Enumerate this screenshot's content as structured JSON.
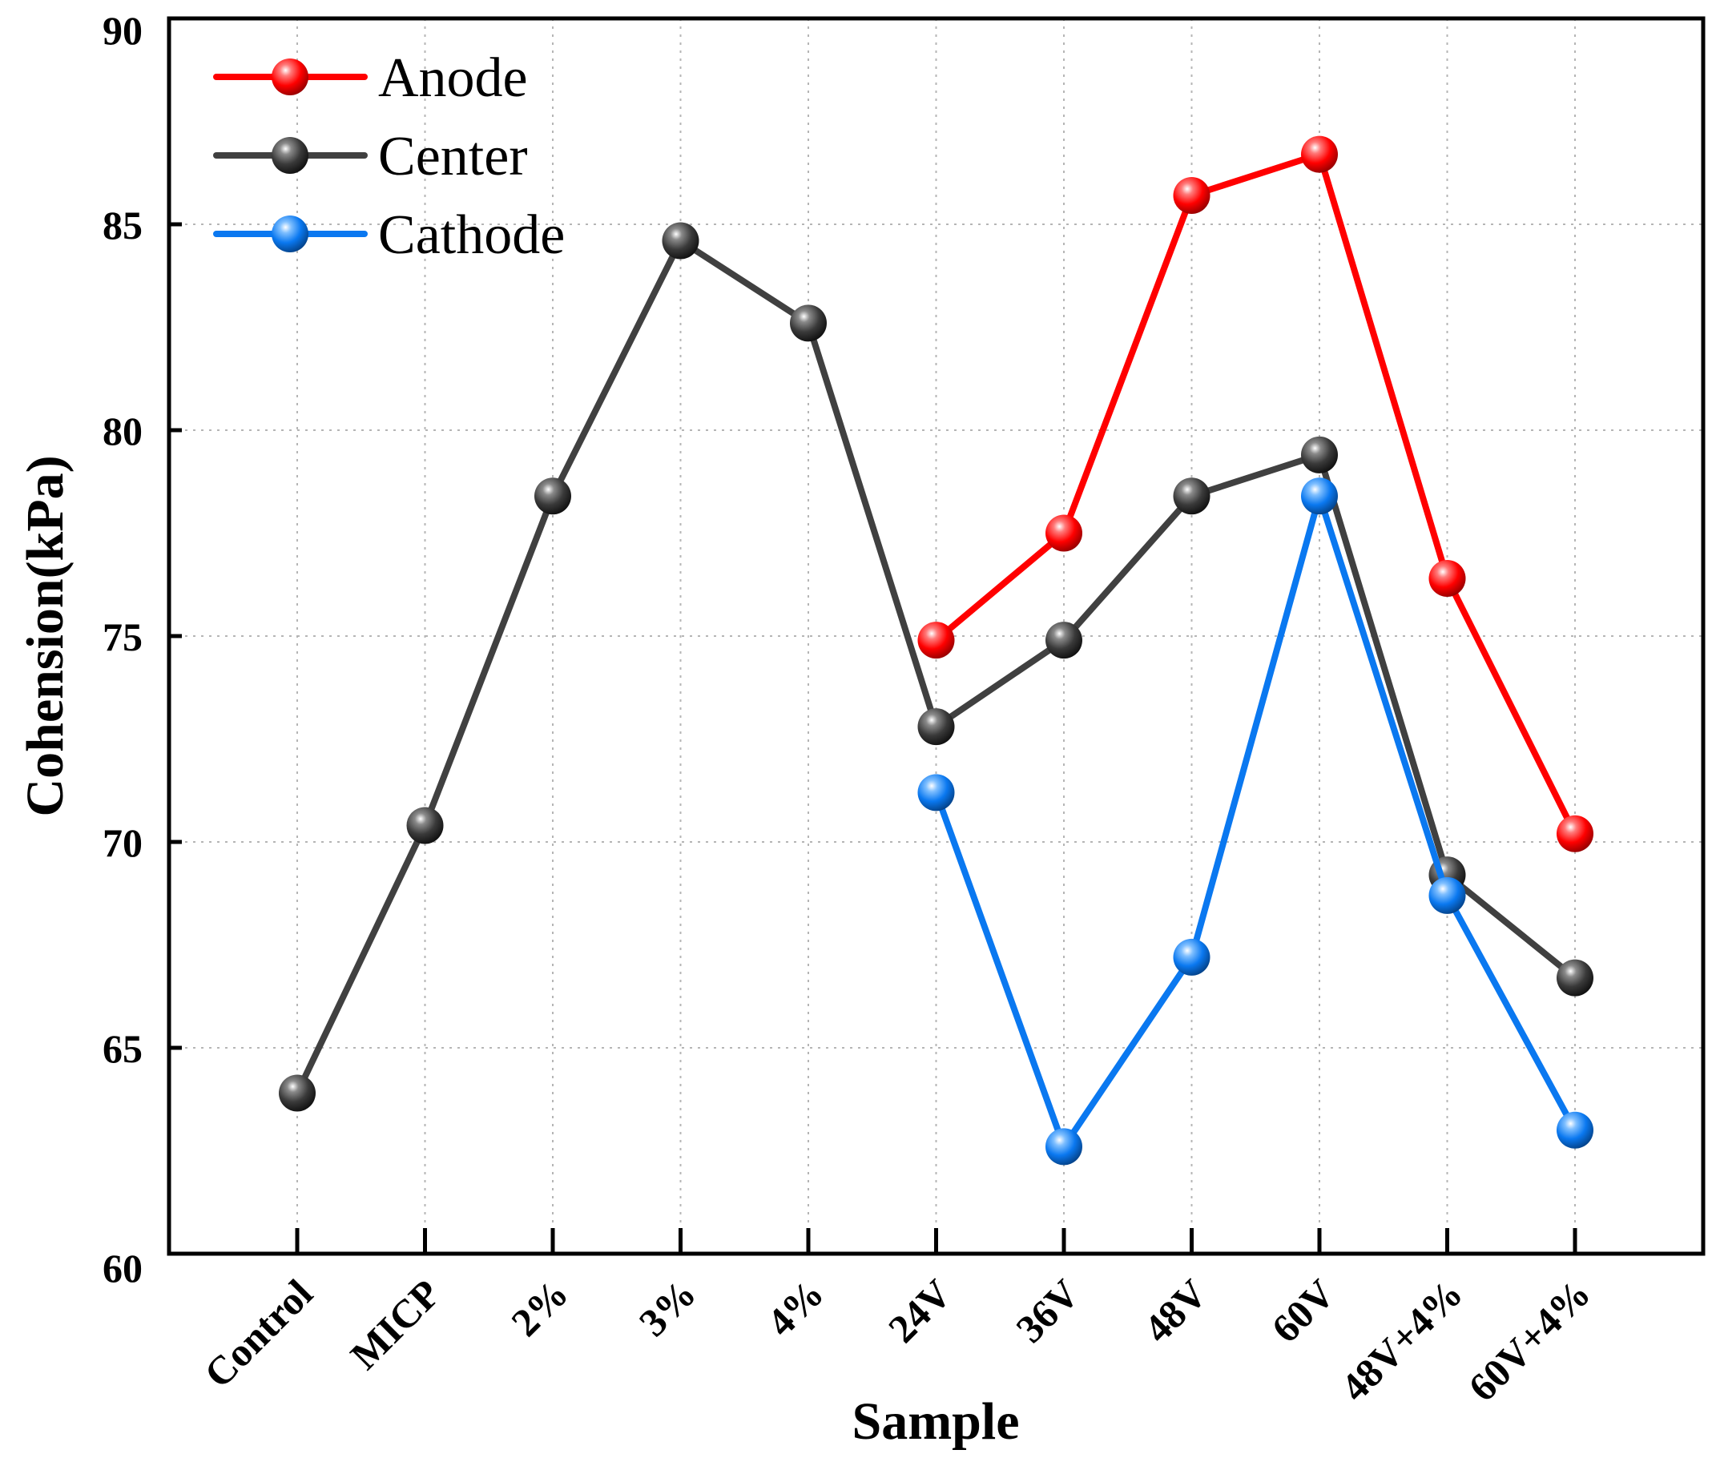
{
  "chart_data": {
    "type": "line",
    "title": "",
    "xlabel": "Sample",
    "ylabel": "Cohension(kPa)",
    "ylim": [
      60,
      90
    ],
    "yticks": [
      60,
      65,
      70,
      75,
      80,
      85,
      90
    ],
    "grid": true,
    "legend_position": "top-left",
    "categories": [
      "Control",
      "MICP",
      "2%",
      "3%",
      "4%",
      "24V",
      "36V",
      "48V",
      "60V",
      "48V+4%",
      "60V+4%"
    ],
    "series": [
      {
        "name": "Anode",
        "color": "#ff0000",
        "values": [
          null,
          null,
          null,
          null,
          null,
          74.9,
          77.5,
          85.7,
          86.7,
          76.4,
          70.2
        ]
      },
      {
        "name": "Center",
        "color": "#404040",
        "values": [
          63.9,
          70.4,
          78.4,
          84.6,
          82.6,
          72.8,
          74.9,
          78.4,
          79.4,
          69.2,
          66.7
        ]
      },
      {
        "name": "Cathode",
        "color": "#0a78f0",
        "values": [
          null,
          null,
          null,
          null,
          null,
          71.2,
          62.6,
          67.2,
          78.4,
          68.7,
          63.0
        ]
      }
    ]
  }
}
